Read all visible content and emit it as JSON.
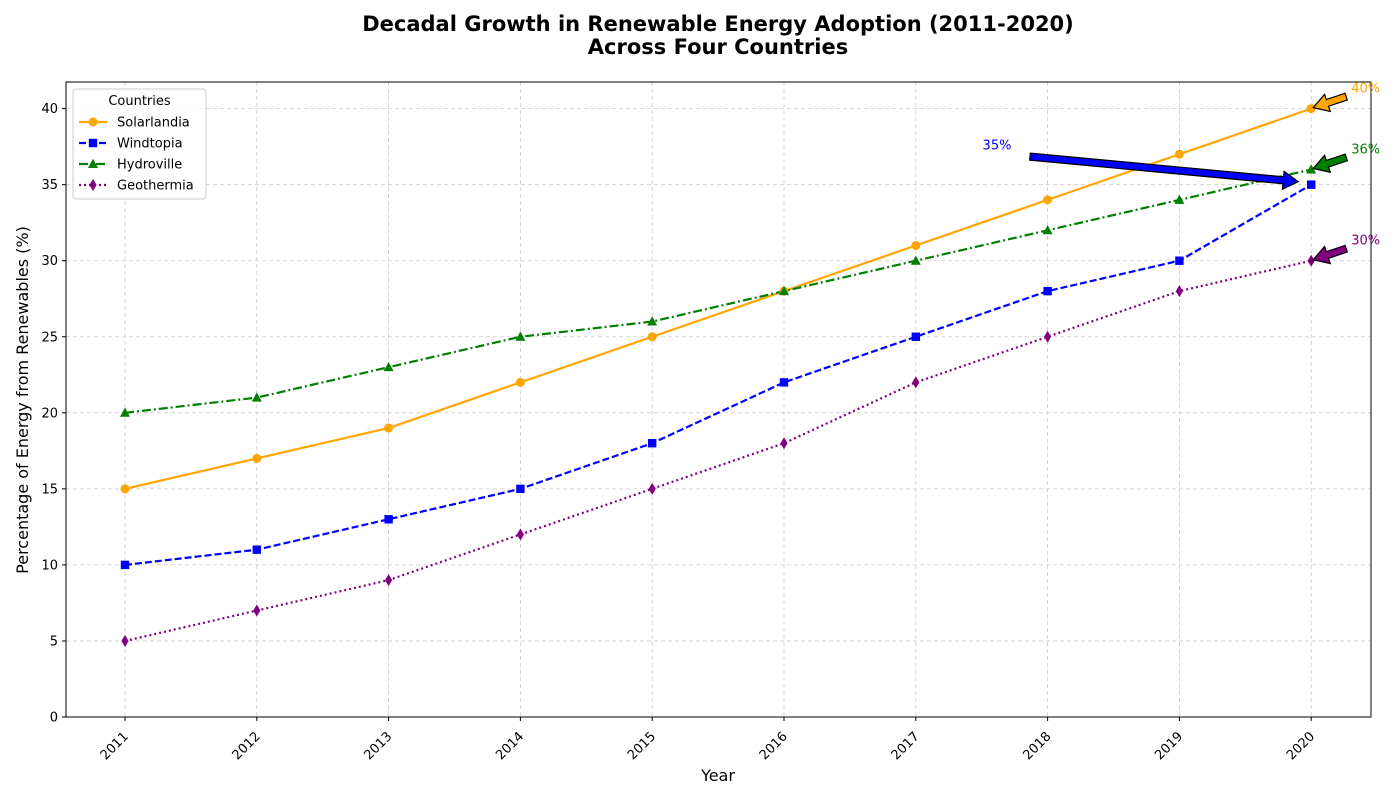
{
  "chart_data": {
    "type": "line",
    "title_line1": "Decadal Growth in Renewable Energy Adoption (2011-2020)",
    "title_line2": "Across Four Countries",
    "xlabel": "Year",
    "ylabel": "Percentage of Energy from Renewables (%)",
    "categories": [
      "2011",
      "2012",
      "2013",
      "2014",
      "2015",
      "2016",
      "2017",
      "2018",
      "2019",
      "2020"
    ],
    "ylim": [
      0,
      41.75
    ],
    "yticks": [
      0,
      5,
      10,
      15,
      20,
      25,
      30,
      35,
      40
    ],
    "grid": true,
    "legend": {
      "title": "Countries",
      "placement": "upper-left"
    },
    "series": [
      {
        "name": "Solarlandia",
        "color": "#ffa500",
        "dash": "solid",
        "marker": "circle",
        "values": [
          15,
          17,
          19,
          22,
          25,
          28,
          31,
          34,
          37,
          40
        ]
      },
      {
        "name": "Windtopia",
        "color": "#0000ff",
        "dash": "dashed",
        "marker": "square",
        "values": [
          10,
          11,
          13,
          15,
          18,
          22,
          25,
          28,
          30,
          35
        ]
      },
      {
        "name": "Hydroville",
        "color": "#008000",
        "dash": "dashdot",
        "marker": "triangle",
        "values": [
          20,
          21,
          23,
          25,
          26,
          28,
          30,
          32,
          34,
          36
        ]
      },
      {
        "name": "Geothermia",
        "color": "#800080",
        "dash": "dotted",
        "marker": "diamond",
        "values": [
          5,
          7,
          9,
          12,
          15,
          18,
          22,
          25,
          28,
          30
        ]
      }
    ],
    "annotations": [
      {
        "text": "40%",
        "color": "#ffa500",
        "series": "Solarlandia"
      },
      {
        "text": "35%",
        "color": "#0000ff",
        "series": "Windtopia"
      },
      {
        "text": "36%",
        "color": "#008000",
        "series": "Hydroville"
      },
      {
        "text": "30%",
        "color": "#800080",
        "series": "Geothermia"
      }
    ]
  }
}
